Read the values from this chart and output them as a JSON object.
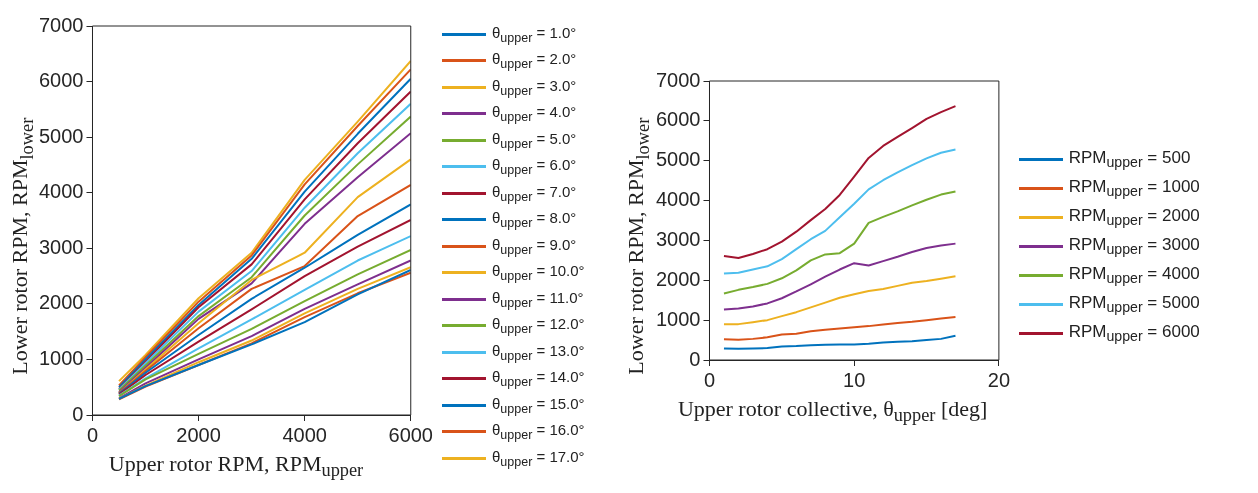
{
  "chart_data": [
    {
      "type": "line",
      "xlabel": "Upper rotor RPM, RPM$_{upper}$",
      "ylabel": "Lower rotor RPM, RPM$_{lower}$",
      "x": [
        500,
        1000,
        2000,
        3000,
        4000,
        5000,
        6000
      ],
      "xlim": [
        0,
        6000
      ],
      "xticks": [
        0,
        2000,
        4000,
        6000
      ],
      "ylim": [
        0,
        7000
      ],
      "yticks": [
        0,
        1000,
        2000,
        3000,
        4000,
        5000,
        6000,
        7000
      ],
      "grid": false,
      "legend": "right",
      "series": [
        {
          "name": "θ$_{upper}$ = 1.0°",
          "color": "#0072bd",
          "values": [
            290,
            520,
            900,
            1270,
            1670,
            2170,
            2610
          ]
        },
        {
          "name": "θ$_{upper}$ = 2.0°",
          "color": "#d95319",
          "values": [
            280,
            510,
            900,
            1290,
            1760,
            2190,
            2560
          ]
        },
        {
          "name": "θ$_{upper}$ = 3.0°",
          "color": "#edb120",
          "values": [
            290,
            530,
            950,
            1340,
            1830,
            2270,
            2660
          ]
        },
        {
          "name": "θ$_{upper}$ = 4.0°",
          "color": "#7e2f8e",
          "values": [
            300,
            570,
            1000,
            1420,
            1910,
            2350,
            2780
          ]
        },
        {
          "name": "θ$_{upper}$ = 5.0°",
          "color": "#77ac30",
          "values": [
            340,
            640,
            1100,
            1550,
            2050,
            2530,
            2970
          ]
        },
        {
          "name": "θ$_{upper}$ = 6.0°",
          "color": "#4dbeee",
          "values": [
            350,
            660,
            1200,
            1720,
            2250,
            2780,
            3220
          ]
        },
        {
          "name": "θ$_{upper}$ = 7.0°",
          "color": "#a2142f",
          "values": [
            370,
            720,
            1320,
            1900,
            2500,
            3030,
            3510
          ]
        },
        {
          "name": "θ$_{upper}$ = 8.0°",
          "color": "#0072bd",
          "values": [
            380,
            760,
            1440,
            2090,
            2650,
            3240,
            3790
          ]
        },
        {
          "name": "θ$_{upper}$ = 9.0°",
          "color": "#d95319",
          "values": [
            390,
            790,
            1560,
            2270,
            2680,
            3580,
            4140
          ]
        },
        {
          "name": "θ$_{upper}$ = 10.0°",
          "color": "#edb120",
          "values": [
            390,
            820,
            1650,
            2430,
            2920,
            3920,
            4600
          ]
        },
        {
          "name": "θ$_{upper}$ = 11.0°",
          "color": "#7e2f8e",
          "values": [
            410,
            850,
            1730,
            2370,
            3440,
            4280,
            5070
          ]
        },
        {
          "name": "θ$_{upper}$ = 12.0°",
          "color": "#77ac30",
          "values": [
            440,
            890,
            1780,
            2480,
            3590,
            4510,
            5370
          ]
        },
        {
          "name": "θ$_{upper}$ = 13.0°",
          "color": "#4dbeee",
          "values": [
            460,
            930,
            1860,
            2590,
            3730,
            4710,
            5600
          ]
        },
        {
          "name": "θ$_{upper}$ = 14.0°",
          "color": "#a2142f",
          "values": [
            470,
            960,
            1940,
            2710,
            3880,
            4890,
            5820
          ]
        },
        {
          "name": "θ$_{upper}$ = 15.0°",
          "color": "#0072bd",
          "values": [
            500,
            1000,
            1980,
            2810,
            4020,
            5060,
            6050
          ]
        },
        {
          "name": "θ$_{upper}$ = 16.0°",
          "color": "#d95319",
          "values": [
            530,
            1040,
            2040,
            2870,
            4150,
            5200,
            6220
          ]
        },
        {
          "name": "θ$_{upper}$ = 17.0°",
          "color": "#edb120",
          "values": [
            610,
            1080,
            2100,
            2920,
            4230,
            5280,
            6370
          ]
        }
      ]
    },
    {
      "type": "line",
      "xlabel": "Upper rotor collective, θ$_{upper}$ [deg]",
      "ylabel": "Lower rotor RPM, RPM$_{lower}$",
      "x": [
        1,
        2,
        3,
        4,
        5,
        6,
        7,
        8,
        9,
        10,
        11,
        12,
        13,
        14,
        15,
        16,
        17
      ],
      "xlim": [
        0,
        20
      ],
      "xticks": [
        0,
        10,
        20
      ],
      "ylim": [
        0,
        7000
      ],
      "yticks": [
        0,
        1000,
        2000,
        3000,
        4000,
        5000,
        6000,
        7000
      ],
      "grid": false,
      "legend": "right",
      "series": [
        {
          "name": "RPM$_{upper}$ = 500",
          "color": "#0072bd",
          "values": [
            290,
            280,
            290,
            300,
            340,
            350,
            370,
            380,
            390,
            390,
            410,
            440,
            460,
            470,
            500,
            530,
            610
          ]
        },
        {
          "name": "RPM$_{upper}$ = 1000",
          "color": "#d95319",
          "values": [
            520,
            510,
            530,
            570,
            640,
            660,
            720,
            760,
            790,
            820,
            850,
            890,
            930,
            960,
            1000,
            1040,
            1080
          ]
        },
        {
          "name": "RPM$_{upper}$ = 2000",
          "color": "#edb120",
          "values": [
            900,
            900,
            950,
            1000,
            1100,
            1200,
            1320,
            1440,
            1560,
            1650,
            1730,
            1780,
            1860,
            1940,
            1980,
            2040,
            2100
          ]
        },
        {
          "name": "RPM$_{upper}$ = 3000",
          "color": "#7e2f8e",
          "values": [
            1270,
            1290,
            1340,
            1420,
            1550,
            1720,
            1900,
            2090,
            2270,
            2430,
            2370,
            2480,
            2590,
            2710,
            2810,
            2870,
            2920
          ]
        },
        {
          "name": "RPM$_{upper}$ = 4000",
          "color": "#77ac30",
          "values": [
            1670,
            1760,
            1830,
            1910,
            2050,
            2250,
            2500,
            2650,
            2680,
            2920,
            3440,
            3590,
            3730,
            3880,
            4020,
            4150,
            4230
          ]
        },
        {
          "name": "RPM$_{upper}$ = 5000",
          "color": "#4dbeee",
          "values": [
            2170,
            2190,
            2270,
            2350,
            2530,
            2780,
            3030,
            3240,
            3580,
            3920,
            4280,
            4510,
            4710,
            4890,
            5060,
            5200,
            5280
          ]
        },
        {
          "name": "RPM$_{upper}$ = 6000",
          "color": "#a2142f",
          "values": [
            2610,
            2560,
            2660,
            2780,
            2970,
            3220,
            3510,
            3790,
            4140,
            4600,
            5070,
            5370,
            5600,
            5820,
            6050,
            6220,
            6370
          ]
        }
      ]
    }
  ]
}
